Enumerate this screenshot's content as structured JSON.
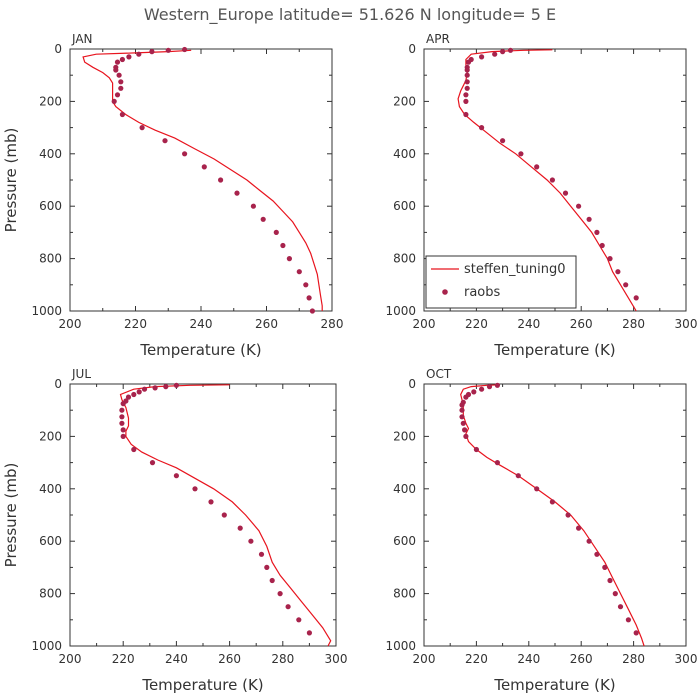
{
  "title": "Western_Europe  latitude= 51.626 N longitude= 5 E",
  "colors": {
    "model_line": "#e8141e",
    "obs_marker": "#a8234c",
    "frame": "#333333"
  },
  "legend": {
    "placement": "inside APR panel, lower-left",
    "entries": [
      {
        "label": "steffen_tuning0",
        "kind": "line"
      },
      {
        "label": "raobs",
        "kind": "marker"
      }
    ]
  },
  "chart_data": [
    {
      "type": "line",
      "panel": "JAN",
      "xlabel": "Temperature (K)",
      "ylabel": "Pressure (mb)",
      "xlim": [
        200,
        280
      ],
      "ylim": [
        0,
        1000
      ],
      "y_inverted": true,
      "xticks": [
        200,
        220,
        240,
        260,
        280
      ],
      "yticks": [
        0,
        200,
        400,
        600,
        800,
        1000
      ],
      "grid": false,
      "series": [
        {
          "name": "steffen_tuning0",
          "kind": "line",
          "points": [
            [
              237,
              5
            ],
            [
              230,
              10
            ],
            [
              220,
              15
            ],
            [
              208,
              20
            ],
            [
              204,
              30
            ],
            [
              204.5,
              50
            ],
            [
              207,
              70
            ],
            [
              210,
              90
            ],
            [
              212,
              110
            ],
            [
              213,
              130
            ],
            [
              213,
              200
            ],
            [
              214,
              220
            ],
            [
              217,
              250
            ],
            [
              221,
              280
            ],
            [
              226,
              310
            ],
            [
              232,
              340
            ],
            [
              238,
              380
            ],
            [
              244,
              420
            ],
            [
              249,
              460
            ],
            [
              254,
              500
            ],
            [
              258,
              540
            ],
            [
              262,
              580
            ],
            [
              265,
              620
            ],
            [
              268,
              660
            ],
            [
              270,
              700
            ],
            [
              272,
              740
            ],
            [
              273.5,
              780
            ],
            [
              274.5,
              820
            ],
            [
              275.5,
              860
            ],
            [
              276,
              900
            ],
            [
              276.5,
              940
            ],
            [
              277,
              980
            ],
            [
              277,
              1000
            ]
          ]
        },
        {
          "name": "raobs",
          "kind": "scatter",
          "points": [
            [
              235,
              2
            ],
            [
              230,
              5
            ],
            [
              225,
              10
            ],
            [
              221,
              20
            ],
            [
              218,
              30
            ],
            [
              216,
              40
            ],
            [
              214.5,
              50
            ],
            [
              214,
              70
            ],
            [
              214,
              80
            ],
            [
              215,
              100
            ],
            [
              215.5,
              125
            ],
            [
              215.5,
              150
            ],
            [
              214.5,
              175
            ],
            [
              213.5,
              200
            ],
            [
              216,
              250
            ],
            [
              222,
              300
            ],
            [
              229,
              350
            ],
            [
              235,
              400
            ],
            [
              241,
              450
            ],
            [
              246,
              500
            ],
            [
              251,
              550
            ],
            [
              256,
              600
            ],
            [
              259,
              650
            ],
            [
              263,
              700
            ],
            [
              265,
              750
            ],
            [
              267,
              800
            ],
            [
              270,
              850
            ],
            [
              272,
              900
            ],
            [
              273,
              950
            ],
            [
              274,
              1000
            ]
          ]
        }
      ]
    },
    {
      "type": "line",
      "panel": "APR",
      "xlabel": "Temperature (K)",
      "ylabel": "",
      "xlim": [
        200,
        300
      ],
      "ylim": [
        0,
        1000
      ],
      "y_inverted": true,
      "xticks": [
        200,
        220,
        240,
        260,
        280,
        300
      ],
      "yticks": [
        0,
        200,
        400,
        600,
        800,
        1000
      ],
      "grid": false,
      "series": [
        {
          "name": "steffen_tuning0",
          "kind": "line",
          "points": [
            [
              249,
              3
            ],
            [
              238,
              5
            ],
            [
              226,
              10
            ],
            [
              218,
              20
            ],
            [
              216,
              40
            ],
            [
              216,
              60
            ],
            [
              216.5,
              90
            ],
            [
              216,
              120
            ],
            [
              215,
              140
            ],
            [
              214,
              160
            ],
            [
              213,
              190
            ],
            [
              213.5,
              220
            ],
            [
              215.5,
              250
            ],
            [
              219,
              280
            ],
            [
              224,
              320
            ],
            [
              229,
              360
            ],
            [
              235,
              400
            ],
            [
              241,
              450
            ],
            [
              247,
              500
            ],
            [
              252,
              550
            ],
            [
              256,
              600
            ],
            [
              260,
              650
            ],
            [
              264,
              700
            ],
            [
              267,
              750
            ],
            [
              270,
              800
            ],
            [
              272,
              850
            ],
            [
              275,
              900
            ],
            [
              278,
              950
            ],
            [
              281,
              1000
            ]
          ]
        },
        {
          "name": "raobs",
          "kind": "scatter",
          "points": [
            [
              233,
              5
            ],
            [
              230,
              10
            ],
            [
              227,
              20
            ],
            [
              222,
              30
            ],
            [
              218,
              40
            ],
            [
              217,
              50
            ],
            [
              216.5,
              70
            ],
            [
              216.5,
              80
            ],
            [
              216.5,
              100
            ],
            [
              216.5,
              125
            ],
            [
              216.5,
              150
            ],
            [
              216,
              175
            ],
            [
              216,
              200
            ],
            [
              216,
              250
            ],
            [
              222,
              300
            ],
            [
              230,
              350
            ],
            [
              237,
              400
            ],
            [
              243,
              450
            ],
            [
              249,
              500
            ],
            [
              254,
              550
            ],
            [
              259,
              600
            ],
            [
              263,
              650
            ],
            [
              266,
              700
            ],
            [
              268,
              750
            ],
            [
              271,
              800
            ],
            [
              274,
              850
            ],
            [
              277,
              900
            ],
            [
              281,
              950
            ]
          ]
        }
      ]
    },
    {
      "type": "line",
      "panel": "JUL",
      "xlabel": "Temperature (K)",
      "ylabel": "Pressure (mb)",
      "xlim": [
        200,
        300
      ],
      "ylim": [
        0,
        1000
      ],
      "y_inverted": true,
      "xticks": [
        200,
        220,
        240,
        260,
        280,
        300
      ],
      "yticks": [
        0,
        200,
        400,
        600,
        800,
        1000
      ],
      "grid": false,
      "series": [
        {
          "name": "steffen_tuning0",
          "kind": "line",
          "points": [
            [
              260,
              3
            ],
            [
              245,
              5
            ],
            [
              232,
              10
            ],
            [
              224,
              20
            ],
            [
              219,
              40
            ],
            [
              219.5,
              60
            ],
            [
              221,
              90
            ],
            [
              222,
              130
            ],
            [
              222,
              160
            ],
            [
              221,
              180
            ],
            [
              221,
              200
            ],
            [
              223,
              230
            ],
            [
              227,
              260
            ],
            [
              233,
              290
            ],
            [
              240,
              320
            ],
            [
              247,
              360
            ],
            [
              254,
              400
            ],
            [
              261,
              450
            ],
            [
              266,
              500
            ],
            [
              271,
              560
            ],
            [
              274,
              620
            ],
            [
              276,
              680
            ],
            [
              279,
              730
            ],
            [
              283,
              780
            ],
            [
              287,
              830
            ],
            [
              291,
              880
            ],
            [
              295,
              930
            ],
            [
              298,
              980
            ],
            [
              297,
              1000
            ]
          ]
        },
        {
          "name": "raobs",
          "kind": "scatter",
          "points": [
            [
              240,
              5
            ],
            [
              236,
              10
            ],
            [
              232,
              15
            ],
            [
              228,
              20
            ],
            [
              226,
              30
            ],
            [
              224,
              40
            ],
            [
              222,
              50
            ],
            [
              221,
              65
            ],
            [
              220,
              75
            ],
            [
              219.5,
              100
            ],
            [
              219.5,
              125
            ],
            [
              219.5,
              150
            ],
            [
              220,
              175
            ],
            [
              220,
              200
            ],
            [
              224,
              250
            ],
            [
              231,
              300
            ],
            [
              240,
              350
            ],
            [
              247,
              400
            ],
            [
              253,
              450
            ],
            [
              258,
              500
            ],
            [
              264,
              550
            ],
            [
              268,
              600
            ],
            [
              272,
              650
            ],
            [
              274,
              700
            ],
            [
              276,
              750
            ],
            [
              279,
              800
            ],
            [
              282,
              850
            ],
            [
              286,
              900
            ],
            [
              290,
              950
            ]
          ]
        }
      ]
    },
    {
      "type": "line",
      "panel": "OCT",
      "xlabel": "Temperature (K)",
      "ylabel": "",
      "xlim": [
        200,
        300
      ],
      "ylim": [
        0,
        1000
      ],
      "y_inverted": true,
      "xticks": [
        200,
        220,
        240,
        260,
        280,
        300
      ],
      "yticks": [
        0,
        200,
        400,
        600,
        800,
        1000
      ],
      "grid": false,
      "series": [
        {
          "name": "steffen_tuning0",
          "kind": "line",
          "points": [
            [
              229,
              3
            ],
            [
              224,
              5
            ],
            [
              218,
              10
            ],
            [
              215,
              20
            ],
            [
              214,
              40
            ],
            [
              214.5,
              60
            ],
            [
              215,
              90
            ],
            [
              215,
              120
            ],
            [
              216,
              150
            ],
            [
              217,
              170
            ],
            [
              216,
              190
            ],
            [
              217,
              220
            ],
            [
              220,
              250
            ],
            [
              224,
              280
            ],
            [
              229,
              310
            ],
            [
              236,
              350
            ],
            [
              243,
              400
            ],
            [
              250,
              450
            ],
            [
              256,
              500
            ],
            [
              261,
              560
            ],
            [
              265,
              620
            ],
            [
              269,
              680
            ],
            [
              272,
              740
            ],
            [
              275,
              800
            ],
            [
              278,
              860
            ],
            [
              281,
              920
            ],
            [
              283,
              970
            ],
            [
              284,
              1000
            ]
          ]
        },
        {
          "name": "raobs",
          "kind": "scatter",
          "points": [
            [
              228,
              5
            ],
            [
              225,
              10
            ],
            [
              222,
              20
            ],
            [
              219,
              30
            ],
            [
              217,
              40
            ],
            [
              216,
              50
            ],
            [
              215,
              70
            ],
            [
              214.5,
              80
            ],
            [
              214.5,
              100
            ],
            [
              214.5,
              125
            ],
            [
              215,
              150
            ],
            [
              215.5,
              175
            ],
            [
              216,
              200
            ],
            [
              220,
              250
            ],
            [
              228,
              300
            ],
            [
              236,
              350
            ],
            [
              243,
              400
            ],
            [
              249,
              450
            ],
            [
              255,
              500
            ],
            [
              259,
              550
            ],
            [
              263,
              600
            ],
            [
              266,
              650
            ],
            [
              269,
              700
            ],
            [
              271,
              750
            ],
            [
              273,
              800
            ],
            [
              275,
              850
            ],
            [
              278,
              900
            ],
            [
              281,
              950
            ]
          ]
        }
      ]
    }
  ]
}
